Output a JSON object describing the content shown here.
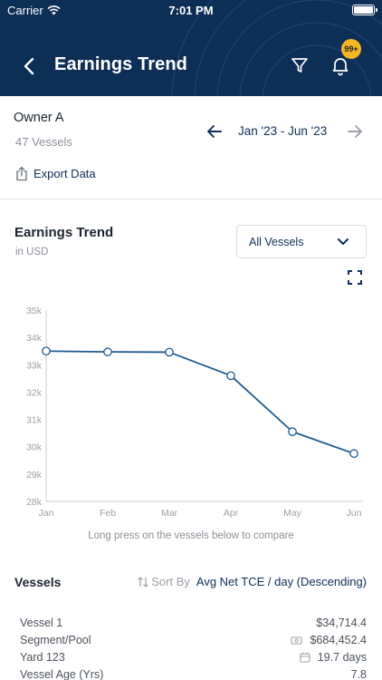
{
  "status_bar": {
    "carrier": "Carrier",
    "time": "7:01 PM"
  },
  "header": {
    "title": "Earnings Trend",
    "notification_badge": "99+"
  },
  "owner": {
    "name": "Owner A",
    "vessel_count": "47 Vessels",
    "date_range": "Jan '23 - Jun '23",
    "export_label": "Export Data"
  },
  "chart_card": {
    "title": "Earnings Trend",
    "subtitle": "in USD",
    "dropdown_value": "All Vessels",
    "hint": "Long press on the vessels below to compare"
  },
  "chart_data": {
    "type": "line",
    "title": "Earnings Trend",
    "subtitle": "in USD",
    "categories": [
      "Jan",
      "Feb",
      "Mar",
      "Apr",
      "May",
      "Jun"
    ],
    "y_ticks": [
      "28k",
      "29k",
      "30k",
      "31k",
      "32k",
      "33k",
      "34k",
      "35k"
    ],
    "ylim": [
      28000,
      35000
    ],
    "series": [
      {
        "values": [
          33500,
          33470,
          33460,
          32600,
          30550,
          29750
        ]
      }
    ],
    "grid": false,
    "legend": "none"
  },
  "vessels": {
    "title": "Vessels",
    "sort_label": "Sort By",
    "sort_value": "Avg Net TCE / day (Descending)",
    "items": [
      {
        "rows": [
          {
            "label": "Vessel 1",
            "value": "$34,714.4",
            "icon": ""
          },
          {
            "label": "Segment/Pool",
            "value": "$684,452.4",
            "icon": "money-icon"
          },
          {
            "label": "Yard 123",
            "value": "19.7 days",
            "icon": "calendar-icon"
          },
          {
            "label": "Vessel Age (Yrs)",
            "value": "7.8",
            "icon": ""
          }
        ]
      }
    ]
  },
  "colors": {
    "header_bg": "#0d2e55",
    "accent": "#1f5a8f",
    "badge": "#f5b623",
    "muted_text": "#8a9099"
  }
}
